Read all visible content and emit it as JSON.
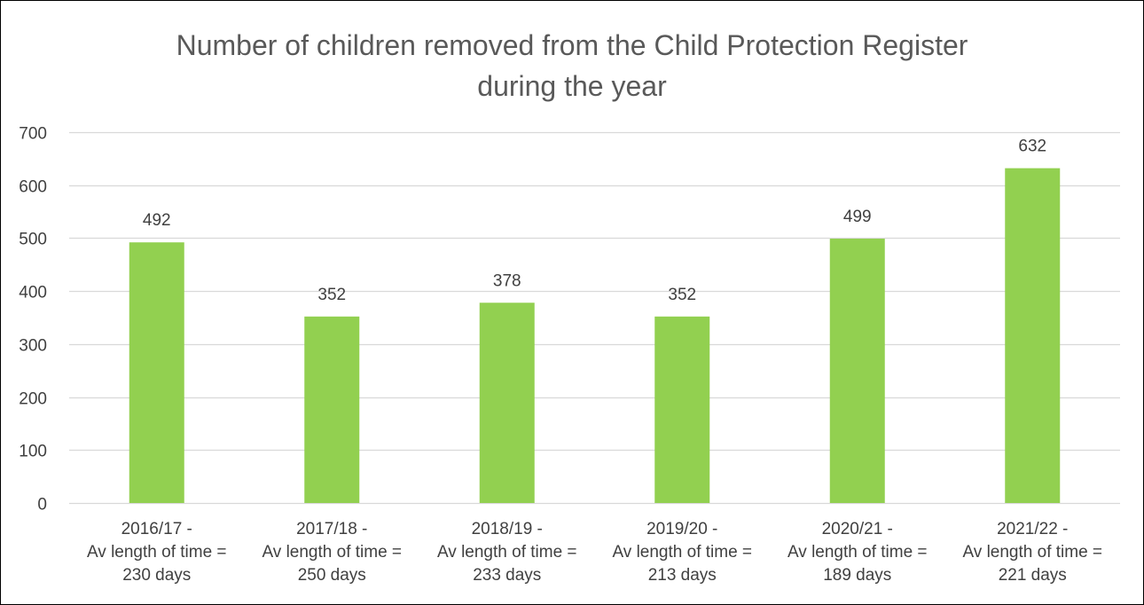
{
  "chart_data": {
    "type": "bar",
    "title": [
      "Number of children removed from the Child Protection Register",
      "during the year"
    ],
    "categories": [
      [
        "2016/17 -",
        "Av length of time =",
        "230 days"
      ],
      [
        "2017/18 -",
        "Av length of time =",
        "250 days"
      ],
      [
        "2018/19 -",
        "Av length of time =",
        "233 days"
      ],
      [
        "2019/20 -",
        "Av length of time =",
        "213 days"
      ],
      [
        "2020/21 -",
        "Av length of time =",
        "189 days"
      ],
      [
        "2021/22 -",
        "Av length of time =",
        "221 days"
      ]
    ],
    "values": [
      492,
      352,
      378,
      352,
      499,
      632
    ],
    "ylim": [
      0,
      700
    ],
    "yticks": [
      0,
      100,
      200,
      300,
      400,
      500,
      600,
      700
    ],
    "grid": true,
    "bar_color": "#92d050",
    "grid_color": "#d9d9d9",
    "text_color": "#404040"
  }
}
